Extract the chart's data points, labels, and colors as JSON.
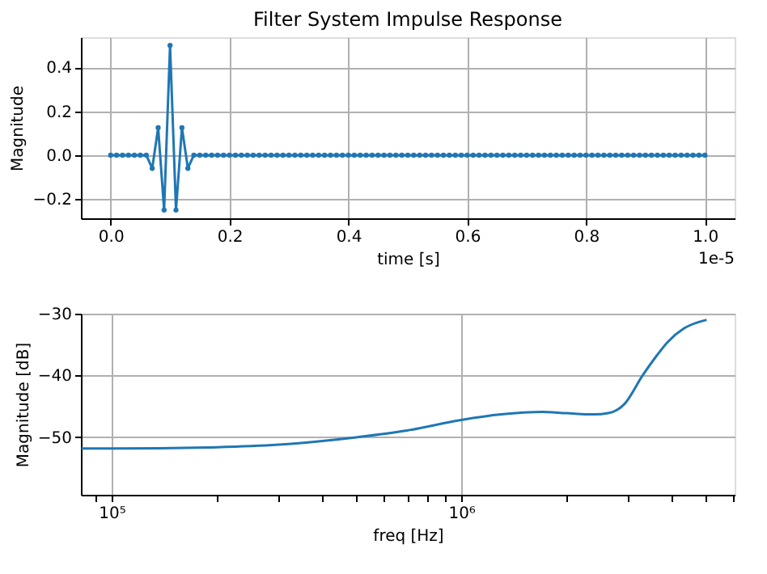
{
  "chart_data": [
    {
      "type": "line",
      "title": "Filter System Impulse Response",
      "xlabel": "time [s]",
      "ylabel": "Magnitude",
      "marker": "circle",
      "grid": true,
      "x": [
        0,
        0.01,
        0.02,
        0.03,
        0.04,
        0.05,
        0.06,
        0.07,
        0.08,
        0.09,
        0.1,
        0.11,
        0.12,
        0.13,
        0.14,
        0.15,
        0.16,
        0.17,
        0.18,
        0.19,
        0.2,
        0.21,
        0.22,
        0.23,
        0.24,
        0.25,
        0.26,
        0.27,
        0.28,
        0.29,
        0.3,
        0.31,
        0.32,
        0.33,
        0.34,
        0.35,
        0.36,
        0.37,
        0.38,
        0.39,
        0.4,
        0.41,
        0.42,
        0.43,
        0.44,
        0.45,
        0.46,
        0.47,
        0.48,
        0.49,
        0.5,
        0.51,
        0.52,
        0.53,
        0.54,
        0.55,
        0.56,
        0.57,
        0.58,
        0.59,
        0.6,
        0.61,
        0.62,
        0.63,
        0.64,
        0.65,
        0.66,
        0.67,
        0.68,
        0.69,
        0.7,
        0.71,
        0.72,
        0.73,
        0.74,
        0.75,
        0.76,
        0.77,
        0.78,
        0.79,
        0.8,
        0.81,
        0.82,
        0.83,
        0.84,
        0.85,
        0.86,
        0.87,
        0.88,
        0.89,
        0.9,
        0.91,
        0.92,
        0.93,
        0.94,
        0.95,
        0.96,
        0.97,
        0.98,
        0.99,
        1.0
      ],
      "series": [
        {
          "color": "#1f77b4",
          "values": [
            0,
            0,
            0,
            0,
            0,
            0,
            0,
            -0.06,
            0.125,
            -0.25,
            0.5,
            -0.25,
            0.125,
            -0.06,
            0,
            0,
            0,
            0,
            0,
            0,
            0,
            0,
            0,
            0,
            0,
            0,
            0,
            0,
            0,
            0,
            0,
            0,
            0,
            0,
            0,
            0,
            0,
            0,
            0,
            0,
            0,
            0,
            0,
            0,
            0,
            0,
            0,
            0,
            0,
            0,
            0,
            0,
            0,
            0,
            0,
            0,
            0,
            0,
            0,
            0,
            0,
            0,
            0,
            0,
            0,
            0,
            0,
            0,
            0,
            0,
            0,
            0,
            0,
            0,
            0,
            0,
            0,
            0,
            0,
            0,
            0,
            0,
            0,
            0,
            0,
            0,
            0,
            0,
            0,
            0,
            0,
            0,
            0,
            0,
            0,
            0,
            0,
            0,
            0,
            0,
            0
          ]
        }
      ],
      "xlim": [
        -0.05,
        1.05
      ],
      "ylim": [
        -0.2875,
        0.5375
      ],
      "xticks": [
        {
          "value": 0,
          "label": "0.0"
        },
        0.2,
        0.4,
        0.6,
        0.8,
        {
          "value": 1.0,
          "label": "1.0"
        }
      ],
      "yticks": [
        {
          "value": -0.2,
          "label": "−0.2"
        },
        {
          "value": 0,
          "label": "0.0"
        },
        0.2,
        0.4
      ],
      "annotations": [
        "1e-5"
      ]
    },
    {
      "type": "line",
      "xlabel": "freq [Hz]",
      "ylabel": "Magnitude [dB]",
      "marker": "none",
      "grid": true,
      "log": "x",
      "x": [
        82000,
        100000,
        200000,
        300000,
        400000,
        500000,
        700000,
        1000000,
        1300000,
        1700000,
        2000000,
        2400000,
        2630000,
        2930000,
        3300000,
        3620000,
        3890000,
        4330000,
        5030000
      ],
      "series": [
        {
          "color": "#1f77b4",
          "values": [
            -51.8,
            -51.8,
            -51.6,
            -51.2,
            -50.6,
            -50.0,
            -48.9,
            -47.2,
            -46.3,
            -45.9,
            -46.1,
            -46.3,
            -46.1,
            -44.6,
            -40.0,
            -36.8,
            -34.6,
            -32.4,
            -31.0
          ]
        }
      ],
      "xlim": [
        81700,
        6050000
      ],
      "ylim": [
        -59.3,
        -30
      ],
      "xticks": [
        {
          "value": 90000,
          "label": null
        },
        {
          "value": 100000,
          "label": "10⁵"
        },
        {
          "value": 200000,
          "label": null
        },
        {
          "value": 300000,
          "label": null
        },
        {
          "value": 400000,
          "label": null
        },
        {
          "value": 500000,
          "label": null
        },
        {
          "value": 600000,
          "label": null
        },
        {
          "value": 700000,
          "label": null
        },
        {
          "value": 800000,
          "label": null
        },
        {
          "value": 900000,
          "label": null
        },
        {
          "value": 1000000,
          "label": "10⁶"
        },
        {
          "value": 2000000,
          "label": null
        },
        {
          "value": 3000000,
          "label": null
        },
        {
          "value": 4000000,
          "label": null
        },
        {
          "value": 5000000,
          "label": null
        },
        {
          "value": 6000000,
          "label": null
        }
      ],
      "yticks": [
        {
          "value": -30,
          "label": "−30"
        },
        {
          "value": -40,
          "label": "−40"
        },
        {
          "value": -50,
          "label": "−50"
        }
      ]
    }
  ]
}
